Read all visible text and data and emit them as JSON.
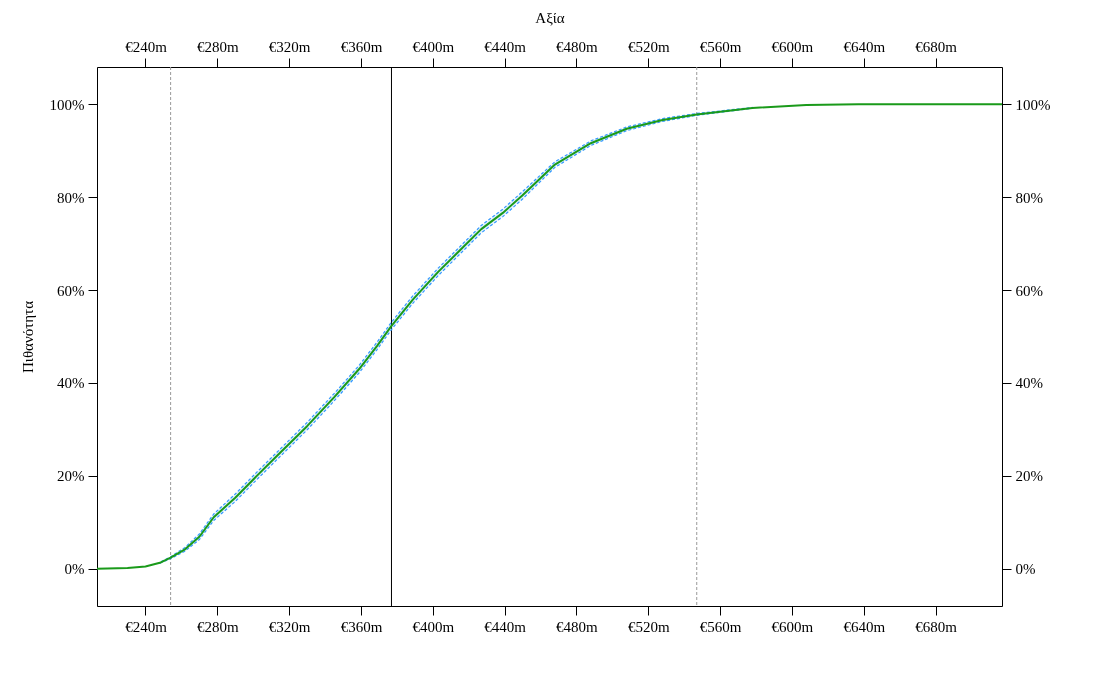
{
  "chart_data": {
    "type": "line",
    "x2label": "Αξία",
    "ylabel": "Πιθανότητα",
    "x": [
      213,
      230,
      240,
      248,
      254,
      262,
      270,
      278,
      290,
      302,
      314,
      330,
      345,
      359,
      369,
      377,
      389,
      403,
      415,
      427,
      439,
      450,
      468,
      488,
      508,
      528,
      547,
      578,
      608,
      637,
      717
    ],
    "series": [
      {
        "color": "#1a9a1a",
        "line_style": "solid",
        "values": [
          0,
          0.2,
          0.5,
          1.3,
          2.4,
          4.2,
          6.9,
          11.1,
          15.3,
          20,
          24.6,
          30.7,
          36.9,
          43,
          48,
          52.3,
          58,
          63.9,
          68.5,
          73.1,
          76.6,
          80.4,
          87,
          91.6,
          94.7,
          96.6,
          97.8,
          99.2,
          99.8,
          100,
          100
        ],
        "lower": [
          null,
          null,
          null,
          1.2,
          2.2,
          3.8,
          6.3,
          10.4,
          14.5,
          19.2,
          23.8,
          29.9,
          36.1,
          42.2,
          47.2,
          51.5,
          57.2,
          63.1,
          67.7,
          72.3,
          75.8,
          79.6,
          86.4,
          91.1,
          94.3,
          96.3,
          97.6,
          99.1,
          null,
          null,
          null
        ],
        "upper": [
          null,
          null,
          null,
          1.4,
          2.6,
          4.6,
          7.5,
          11.8,
          16.1,
          20.8,
          25.4,
          31.5,
          37.7,
          43.8,
          48.8,
          53.1,
          58.8,
          64.7,
          69.3,
          73.9,
          77.4,
          81.2,
          87.6,
          92.1,
          95.1,
          96.9,
          98,
          99.3,
          null,
          null,
          null
        ]
      }
    ],
    "xlim": [
      213,
      717
    ],
    "xticks": [
      {
        "value": 240,
        "label": "€240m"
      },
      {
        "value": 280,
        "label": "€280m"
      },
      {
        "value": 320,
        "label": "€320m"
      },
      {
        "value": 360,
        "label": "€360m"
      },
      {
        "value": 400,
        "label": "€400m"
      },
      {
        "value": 440,
        "label": "€440m"
      },
      {
        "value": 480,
        "label": "€480m"
      },
      {
        "value": 520,
        "label": "€520m"
      },
      {
        "value": 560,
        "label": "€560m"
      },
      {
        "value": 600,
        "label": "€600m"
      },
      {
        "value": 640,
        "label": "€640m"
      },
      {
        "value": 680,
        "label": "€680m"
      }
    ],
    "x2lim": [
      213,
      717
    ],
    "x2ticks": [
      {
        "value": 240,
        "label": "€240m"
      },
      {
        "value": 280,
        "label": "€280m"
      },
      {
        "value": 320,
        "label": "€320m"
      },
      {
        "value": 360,
        "label": "€360m"
      },
      {
        "value": 400,
        "label": "€400m"
      },
      {
        "value": 440,
        "label": "€440m"
      },
      {
        "value": 480,
        "label": "€480m"
      },
      {
        "value": 520,
        "label": "€520m"
      },
      {
        "value": 560,
        "label": "€560m"
      },
      {
        "value": 600,
        "label": "€600m"
      },
      {
        "value": 640,
        "label": "€640m"
      },
      {
        "value": 680,
        "label": "€680m"
      }
    ],
    "ylim": [
      -8,
      108
    ],
    "yticks": [
      {
        "value": 0,
        "label": "0%"
      },
      {
        "value": 20,
        "label": "20%"
      },
      {
        "value": 40,
        "label": "40%"
      },
      {
        "value": 60,
        "label": "60%"
      },
      {
        "value": 80,
        "label": "80%"
      },
      {
        "value": 100,
        "label": "100%"
      }
    ],
    "y2lim": [
      -8,
      108
    ],
    "y2ticks": [
      {
        "value": 0,
        "label": "0%"
      },
      {
        "value": 20,
        "label": "20%"
      },
      {
        "value": 40,
        "label": "40%"
      },
      {
        "value": 60,
        "label": "60%"
      },
      {
        "value": 80,
        "label": "80%"
      },
      {
        "value": 100,
        "label": "100%"
      }
    ],
    "ref_lines": [
      {
        "axis": "x",
        "value": 254,
        "color": "#999999",
        "line_style": "dashed"
      },
      {
        "axis": "x",
        "value": 377,
        "color": "#000000",
        "line_style": "solid"
      },
      {
        "axis": "x",
        "value": 547,
        "color": "#999999",
        "line_style": "dashed"
      }
    ],
    "grid": false
  }
}
